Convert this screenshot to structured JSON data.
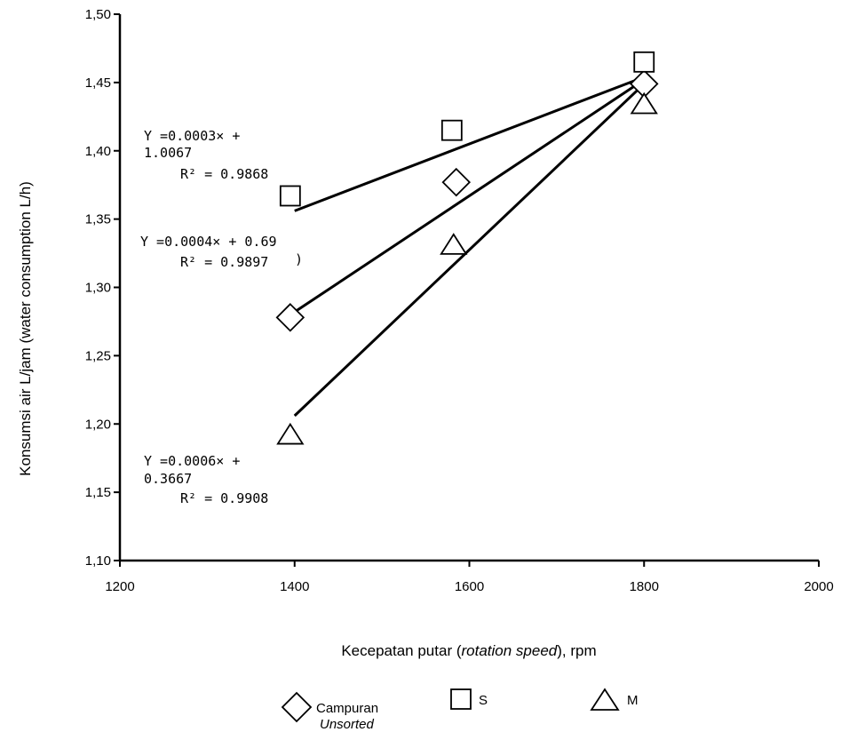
{
  "chart_data": {
    "type": "scatter",
    "xlabel_parts": [
      "Kecepatan putar (",
      "rotation speed",
      "), rpm"
    ],
    "ylabel": "Konsumsi air L/jam (water consumption L/h)",
    "xlim": [
      1200,
      2000
    ],
    "ylim": [
      1.1,
      1.5
    ],
    "x_ticks": [
      "1200",
      "1400",
      "1600",
      "1800",
      "2000"
    ],
    "y_ticks": [
      "1,10",
      "1,15",
      "1,20",
      "1,25",
      "1,30",
      "1,35",
      "1,40",
      "1,45",
      "1,50"
    ],
    "grid": false,
    "series": [
      {
        "name": "Campuran",
        "name_sub": "Unsorted",
        "marker": "diamond",
        "x": [
          1395,
          1585,
          1800
        ],
        "y": [
          1.278,
          1.377,
          1.449
        ],
        "trend_start": [
          1400,
          1.282
        ],
        "trend_end": [
          1800,
          1.452
        ],
        "equation_line1": "Y =0.0004× + 0.69",
        "equation_line2": "R² = 0.9897",
        "equation_extra": ")"
      },
      {
        "name": "S",
        "marker": "square",
        "x": [
          1395,
          1580,
          1800
        ],
        "y": [
          1.367,
          1.415,
          1.465
        ],
        "trend_start": [
          1400,
          1.356
        ],
        "trend_end": [
          1800,
          1.454
        ],
        "equation_line1": "Y =0.0003× +",
        "equation_line1b": "1.0067",
        "equation_line2": "R² = 0.9868"
      },
      {
        "name": "M",
        "marker": "triangle",
        "x": [
          1395,
          1582,
          1800
        ],
        "y": [
          1.192,
          1.331,
          1.434
        ],
        "trend_start": [
          1400,
          1.206
        ],
        "trend_end": [
          1800,
          1.449
        ],
        "equation_line1": "Y =0.0006× +",
        "equation_line1b": "0.3667",
        "equation_line2": "R² = 0.9908"
      }
    ]
  }
}
